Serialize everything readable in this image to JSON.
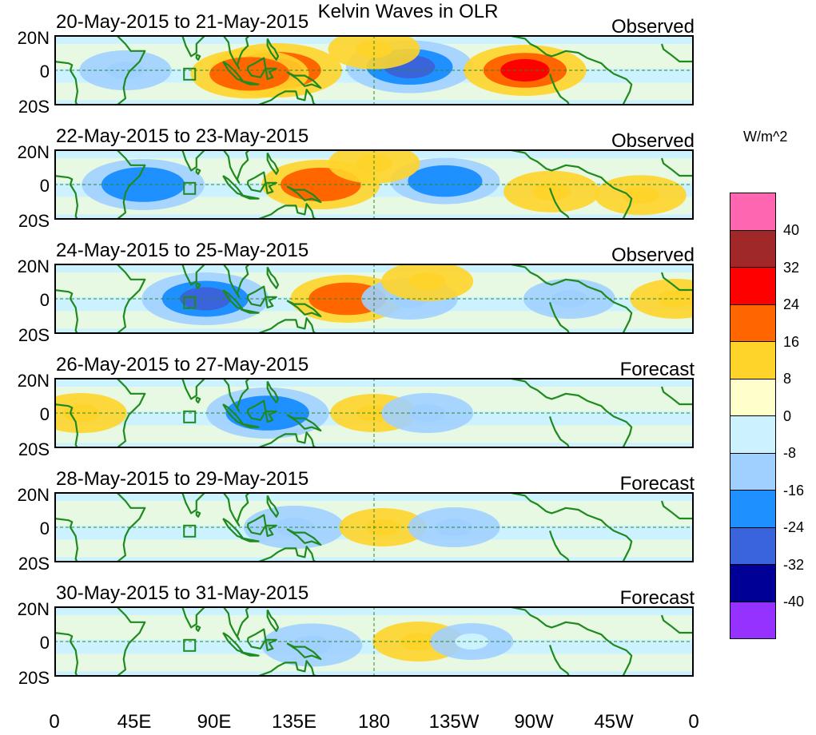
{
  "title": "Kelvin Waves in OLR",
  "units": "W/m^2",
  "lat_labels": [
    "20N",
    "0",
    "20S"
  ],
  "x_ticks": [
    "0",
    "45E",
    "90E",
    "135E",
    "180",
    "135W",
    "90W",
    "45W",
    "0"
  ],
  "panels": [
    {
      "date": "20-May-2015 to 21-May-2015",
      "status": "Observed",
      "anomalies": [
        {
          "lon": 125,
          "lat": 0,
          "value": 28
        },
        {
          "lon": 110,
          "lat": -2,
          "value": 22
        },
        {
          "lon": 200,
          "lat": 2,
          "value": -26
        },
        {
          "lon": 265,
          "lat": 0,
          "value": 24
        },
        {
          "lon": 40,
          "lat": 0,
          "value": -10
        },
        {
          "lon": 180,
          "lat": 12,
          "value": 10
        }
      ]
    },
    {
      "date": "22-May-2015 to 23-May-2015",
      "status": "Observed",
      "anomalies": [
        {
          "lon": 50,
          "lat": 0,
          "value": -24
        },
        {
          "lon": 150,
          "lat": 0,
          "value": 22
        },
        {
          "lon": 220,
          "lat": 2,
          "value": -18
        },
        {
          "lon": 280,
          "lat": -4,
          "value": 12
        },
        {
          "lon": 180,
          "lat": 12,
          "value": 10
        },
        {
          "lon": 330,
          "lat": -6,
          "value": 10
        }
      ]
    },
    {
      "date": "24-May-2015 to 25-May-2015",
      "status": "Observed",
      "anomalies": [
        {
          "lon": 85,
          "lat": 0,
          "value": -26
        },
        {
          "lon": 165,
          "lat": 0,
          "value": 20
        },
        {
          "lon": 200,
          "lat": 0,
          "value": -12
        },
        {
          "lon": 210,
          "lat": 10,
          "value": 10
        },
        {
          "lon": 290,
          "lat": 0,
          "value": -10
        },
        {
          "lon": 350,
          "lat": 0,
          "value": 10
        }
      ]
    },
    {
      "date": "26-May-2015 to 27-May-2015",
      "status": "Forecast",
      "anomalies": [
        {
          "lon": 120,
          "lat": 0,
          "value": -24
        },
        {
          "lon": 180,
          "lat": 0,
          "value": 8
        },
        {
          "lon": 210,
          "lat": 0,
          "value": -10
        },
        {
          "lon": 15,
          "lat": 0,
          "value": 10
        }
      ]
    },
    {
      "date": "28-May-2015 to 29-May-2015",
      "status": "Forecast",
      "anomalies": [
        {
          "lon": 135,
          "lat": 0,
          "value": -14
        },
        {
          "lon": 185,
          "lat": 0,
          "value": 8
        },
        {
          "lon": 225,
          "lat": 0,
          "value": -10
        }
      ]
    },
    {
      "date": "30-May-2015 to 31-May-2015",
      "status": "Forecast",
      "anomalies": [
        {
          "lon": 145,
          "lat": -2,
          "value": -14
        },
        {
          "lon": 205,
          "lat": 0,
          "value": 10
        },
        {
          "lon": 235,
          "lat": 0,
          "value": -6
        }
      ]
    }
  ],
  "colorbar": {
    "levels": [
      "40",
      "32",
      "24",
      "16",
      "8",
      "0",
      "-8",
      "-16",
      "-24",
      "-32",
      "-40"
    ],
    "colors": [
      "#ff66b2",
      "#a02828",
      "#ff0000",
      "#ff6600",
      "#ffd42a",
      "#ffffcc",
      "#ccf2ff",
      "#a0d0ff",
      "#1e90ff",
      "#3a64dc",
      "#000096",
      "#9632ff"
    ]
  }
}
